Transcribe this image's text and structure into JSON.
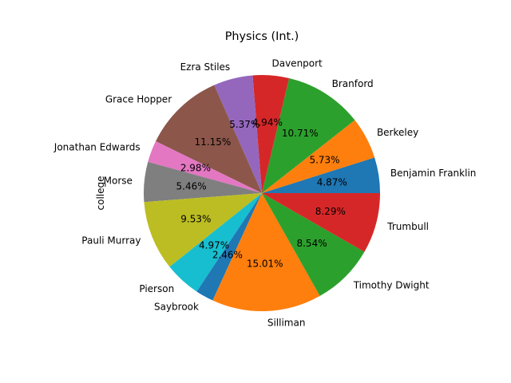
{
  "chart_data": {
    "type": "pie",
    "title": "Physics (Int.)",
    "ylabel": "college",
    "labels": [
      "Benjamin Franklin",
      "Berkeley",
      "Branford",
      "Davenport",
      "Ezra Stiles",
      "Grace Hopper",
      "Jonathan Edwards",
      "Morse",
      "Pauli Murray",
      "Pierson",
      "Saybrook",
      "Silliman",
      "Timothy Dwight",
      "Trumbull"
    ],
    "values": [
      4.87,
      5.73,
      10.71,
      4.94,
      5.37,
      11.15,
      2.98,
      5.46,
      9.53,
      4.97,
      2.46,
      15.01,
      8.54,
      8.29
    ],
    "percent_labels": [
      "4.87%",
      "5.73%",
      "10.71%",
      "4.94%",
      "5.37%",
      "11.15%",
      "2.98%",
      "5.46%",
      "9.53%",
      "4.97%",
      "2.46%",
      "15.01%",
      "8.54%",
      "8.29%"
    ],
    "colors": [
      "#1f77b4",
      "#ff7f0e",
      "#2ca02c",
      "#d62728",
      "#9467bd",
      "#8c564b",
      "#e377c2",
      "#7f7f7f",
      "#bcbd22",
      "#17becf",
      "#1f77b4",
      "#ff7f0e",
      "#2ca02c",
      "#d62728"
    ],
    "start_angle": "0 (3 o'clock)",
    "direction": "counterclockwise"
  }
}
